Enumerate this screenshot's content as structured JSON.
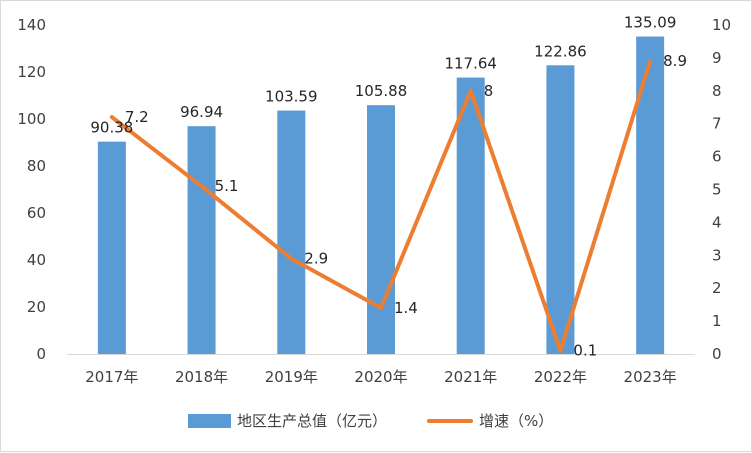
{
  "chart_data": {
    "type": "bar",
    "categories": [
      "2017年",
      "2018年",
      "2019年",
      "2020年",
      "2021年",
      "2022年",
      "2023年"
    ],
    "series": [
      {
        "name": "地区生产总值（亿元）",
        "type": "bar",
        "axis": "left",
        "values": [
          90.38,
          96.94,
          103.59,
          105.88,
          117.64,
          122.86,
          135.09
        ],
        "labels": [
          "90.38",
          "96.94",
          "103.59",
          "105.88",
          "117.64",
          "122.86",
          "135.09"
        ]
      },
      {
        "name": "增速（%）",
        "type": "line",
        "axis": "right",
        "values": [
          7.2,
          5.1,
          2.9,
          1.4,
          8,
          0.1,
          8.9
        ],
        "labels": [
          "7.2",
          "5.1",
          "2.9",
          "1.4",
          "8",
          "0.1",
          "8.9"
        ]
      }
    ],
    "y_left": {
      "min": 0,
      "max": 140,
      "ticks": [
        "0",
        "20",
        "40",
        "60",
        "80",
        "100",
        "120",
        "140"
      ]
    },
    "y_right": {
      "min": 0,
      "max": 10,
      "ticks": [
        "0",
        "1",
        "2",
        "3",
        "4",
        "5",
        "6",
        "7",
        "8",
        "9",
        "10"
      ]
    },
    "grid": false,
    "legend": "bottom",
    "colors": {
      "bar": "#5b9bd5",
      "line": "#ed7d31",
      "axis": "#d9d9d9"
    }
  }
}
